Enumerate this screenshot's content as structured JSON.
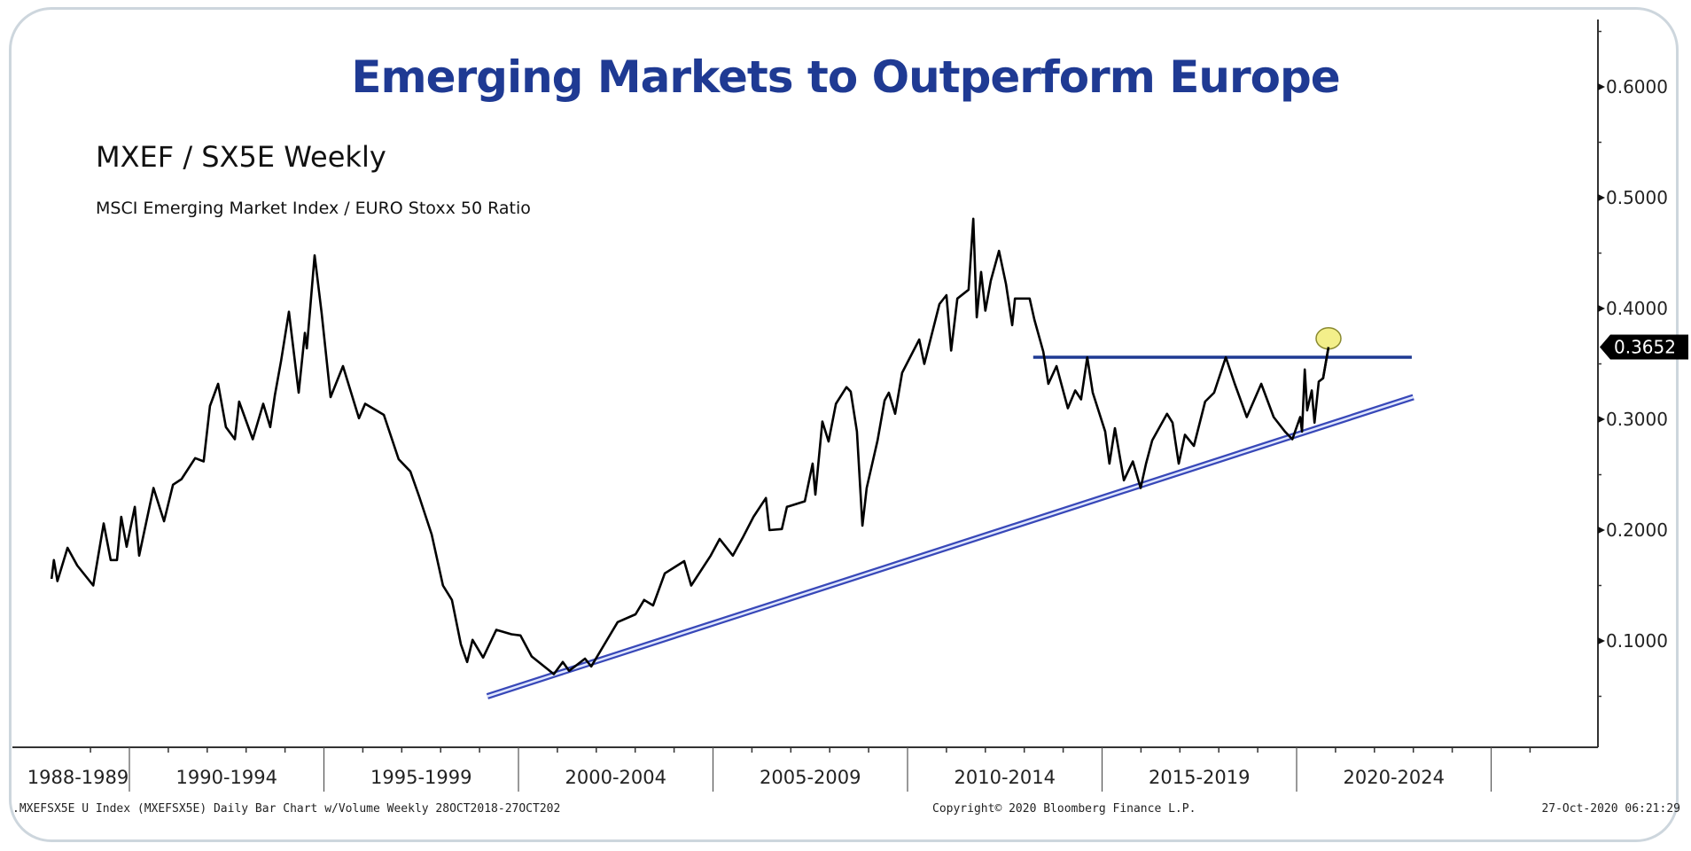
{
  "chart_data": {
    "type": "line",
    "title": "Emerging Markets to Outperform Europe",
    "subtitle": "MXEF / SX5E Weekly",
    "description": "MSCI Emerging Market Index / EURO Stoxx 50 Ratio",
    "xlabel": "",
    "ylabel": "",
    "xlim": [
      1988,
      2025.6
    ],
    "ylim": [
      0.0,
      0.66
    ],
    "y_ticks": [
      {
        "value": 0.6,
        "label": "0.6000"
      },
      {
        "value": 0.5,
        "label": "0.5000"
      },
      {
        "value": 0.4,
        "label": "0.4000"
      },
      {
        "value": 0.3,
        "label": "0.3000"
      },
      {
        "value": 0.2,
        "label": "0.2000"
      },
      {
        "value": 0.1,
        "label": "0.1000"
      }
    ],
    "y_minor_ticks": [
      0.05,
      0.15,
      0.25,
      0.35,
      0.45,
      0.55,
      0.65
    ],
    "y_axis_position": "right",
    "x_period_dividers": [
      1990,
      1995,
      2000,
      2005,
      2010,
      2015,
      2020,
      2025
    ],
    "x_periods": [
      {
        "label": "1988-1989",
        "start": 1988,
        "end": 1990
      },
      {
        "label": "1990-1994",
        "start": 1990,
        "end": 1995
      },
      {
        "label": "1995-1999",
        "start": 1995,
        "end": 2000
      },
      {
        "label": "2000-2004",
        "start": 2000,
        "end": 2005
      },
      {
        "label": "2005-2009",
        "start": 2005,
        "end": 2010
      },
      {
        "label": "2010-2014",
        "start": 2010,
        "end": 2015
      },
      {
        "label": "2015-2019",
        "start": 2015,
        "end": 2020
      },
      {
        "label": "2020-2024",
        "start": 2020,
        "end": 2025
      }
    ],
    "grid": false,
    "legend": "none",
    "last_value": {
      "value": 0.3652,
      "label": "0.3652"
    },
    "series": [
      {
        "name": "MXEF / SX5E",
        "color": "#000000",
        "x": [
          1988.0,
          1988.06,
          1988.15,
          1988.41,
          1988.66,
          1989.07,
          1989.34,
          1989.52,
          1989.68,
          1989.79,
          1989.93,
          1990.14,
          1990.25,
          1990.62,
          1990.89,
          1991.12,
          1991.34,
          1991.69,
          1991.91,
          1992.07,
          1992.28,
          1992.48,
          1992.71,
          1992.82,
          1993.17,
          1993.44,
          1993.62,
          1993.74,
          1993.9,
          1994.1,
          1994.35,
          1994.51,
          1994.56,
          1994.76,
          1994.94,
          1995.17,
          1995.49,
          1995.9,
          1996.06,
          1996.54,
          1996.92,
          1997.22,
          1997.45,
          1997.77,
          1998.06,
          1998.29,
          1998.52,
          1998.68,
          1998.82,
          1999.09,
          1999.43,
          1999.82,
          2000.05,
          2000.34,
          2000.91,
          2001.14,
          2001.3,
          2001.71,
          2001.87,
          2002.16,
          2002.55,
          2003.01,
          2003.23,
          2003.46,
          2003.76,
          2004.26,
          2004.44,
          2004.94,
          2005.17,
          2005.51,
          2005.76,
          2006.04,
          2006.36,
          2006.45,
          2006.77,
          2006.9,
          2007.36,
          2007.56,
          2007.63,
          2007.81,
          2007.97,
          2008.16,
          2008.43,
          2008.54,
          2008.7,
          2008.84,
          2008.95,
          2009.23,
          2009.41,
          2009.52,
          2009.68,
          2009.86,
          2010.3,
          2010.43,
          2010.82,
          2011.0,
          2011.12,
          2011.28,
          2011.57,
          2011.69,
          2011.78,
          2011.89,
          2012.0,
          2012.14,
          2012.35,
          2012.53,
          2012.69,
          2012.76,
          2013.14,
          2013.26,
          2013.49,
          2013.62,
          2013.83,
          2014.12,
          2014.31,
          2014.46,
          2014.62,
          2014.76,
          2015.08,
          2015.19,
          2015.33,
          2015.56,
          2015.79,
          2015.99,
          2016.13,
          2016.29,
          2016.67,
          2016.81,
          2016.97,
          2017.13,
          2017.36,
          2017.65,
          2017.88,
          2018.18,
          2018.41,
          2018.72,
          2019.09,
          2019.41,
          2019.7,
          2019.89,
          2020.09,
          2020.14,
          2020.21,
          2020.27,
          2020.39,
          2020.46,
          2020.57,
          2020.68,
          2020.82
        ],
        "values": [
          0.156,
          0.173,
          0.154,
          0.184,
          0.168,
          0.15,
          0.206,
          0.173,
          0.173,
          0.212,
          0.185,
          0.221,
          0.177,
          0.238,
          0.208,
          0.241,
          0.246,
          0.265,
          0.262,
          0.312,
          0.332,
          0.293,
          0.282,
          0.316,
          0.282,
          0.314,
          0.293,
          0.322,
          0.353,
          0.397,
          0.324,
          0.378,
          0.364,
          0.448,
          0.396,
          0.32,
          0.348,
          0.301,
          0.314,
          0.304,
          0.264,
          0.253,
          0.23,
          0.196,
          0.15,
          0.137,
          0.097,
          0.081,
          0.101,
          0.085,
          0.11,
          0.106,
          0.105,
          0.086,
          0.07,
          0.081,
          0.073,
          0.084,
          0.077,
          0.094,
          0.117,
          0.124,
          0.137,
          0.132,
          0.161,
          0.172,
          0.15,
          0.177,
          0.192,
          0.177,
          0.193,
          0.212,
          0.229,
          0.2,
          0.201,
          0.221,
          0.226,
          0.26,
          0.232,
          0.298,
          0.28,
          0.314,
          0.329,
          0.325,
          0.289,
          0.204,
          0.238,
          0.281,
          0.317,
          0.324,
          0.305,
          0.342,
          0.372,
          0.35,
          0.404,
          0.412,
          0.362,
          0.409,
          0.417,
          0.481,
          0.392,
          0.433,
          0.398,
          0.425,
          0.452,
          0.422,
          0.385,
          0.409,
          0.409,
          0.39,
          0.361,
          0.332,
          0.348,
          0.31,
          0.326,
          0.318,
          0.356,
          0.324,
          0.289,
          0.26,
          0.292,
          0.245,
          0.262,
          0.238,
          0.26,
          0.281,
          0.305,
          0.297,
          0.26,
          0.286,
          0.276,
          0.316,
          0.324,
          0.356,
          0.332,
          0.302,
          0.332,
          0.302,
          0.289,
          0.282,
          0.302,
          0.289,
          0.345,
          0.308,
          0.326,
          0.297,
          0.334,
          0.337,
          0.3652
        ]
      }
    ],
    "annotations": [
      {
        "type": "trendline",
        "name": "rising support",
        "color": "#3848b8",
        "style": "double",
        "x": [
          1999.2,
          2023.0
        ],
        "values": [
          0.05,
          0.32
        ]
      },
      {
        "type": "hline",
        "name": "resistance",
        "color": "#1f3a93",
        "x": [
          2013.23,
          2022.96
        ],
        "value": 0.356
      },
      {
        "type": "highlight-circle",
        "name": "breakout",
        "color": "#f3ef8a",
        "x": 2020.82,
        "value": 0.373
      }
    ]
  },
  "footer": {
    "left": ".MXEFSX5E U Index (MXEFSX5E) Daily Bar Chart w/Volume  Weekly 28OCT2018-27OCT202",
    "center": "Copyright© 2020 Bloomberg Finance L.P.",
    "right": "27-Oct-2020 06:21:29"
  }
}
